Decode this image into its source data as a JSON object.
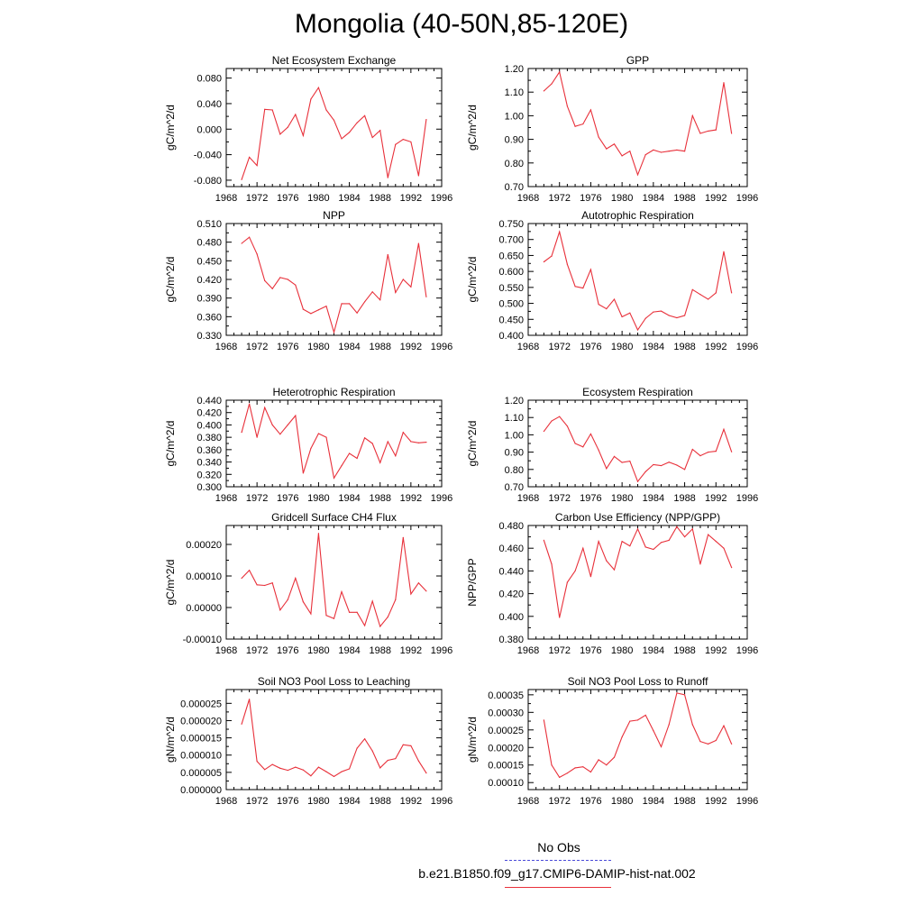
{
  "title": "Mongolia (40-50N,85-120E)",
  "legend": {
    "noobs_label": "No Obs",
    "case_label": "b.e21.B1850.f09_g17.CMIP6-DAMIP-hist-nat.002",
    "noobs_color": "#4a4ad8",
    "case_color": "#e8303a"
  },
  "chart_data": [
    {
      "type": "line",
      "title": "Net Ecosystem Exchange",
      "ylabel": "gC/m^2/d",
      "xlim": [
        1968,
        1996
      ],
      "ylim": [
        -0.09,
        0.095
      ],
      "xticks": [
        1968,
        1972,
        1976,
        1980,
        1984,
        1988,
        1992,
        1996
      ],
      "yticks": [
        "-0.080",
        "-0.040",
        "0.000",
        "0.040",
        "0.080"
      ],
      "yticks_values": [
        -0.08,
        -0.04,
        0.0,
        0.04,
        0.08
      ],
      "x": [
        1970,
        1971,
        1972,
        1973,
        1974,
        1975,
        1976,
        1977,
        1978,
        1979,
        1980,
        1981,
        1982,
        1983,
        1984,
        1985,
        1986,
        1987,
        1988,
        1989,
        1990,
        1991,
        1992,
        1993,
        1994
      ],
      "values": [
        -0.079,
        -0.044,
        -0.057,
        0.031,
        0.03,
        -0.008,
        0.003,
        0.023,
        -0.01,
        0.047,
        0.065,
        0.03,
        0.014,
        -0.015,
        -0.005,
        0.01,
        0.021,
        -0.013,
        -0.002,
        -0.076,
        -0.024,
        -0.016,
        -0.02,
        -0.073,
        0.015
      ]
    },
    {
      "type": "line",
      "title": "GPP",
      "ylabel": "gC/m^2/d",
      "xlim": [
        1968,
        1996
      ],
      "ylim": [
        0.7,
        1.2
      ],
      "xticks": [
        1968,
        1972,
        1976,
        1980,
        1984,
        1988,
        1992,
        1996
      ],
      "yticks": [
        "0.70",
        "0.80",
        "0.90",
        "1.00",
        "1.10",
        "1.20"
      ],
      "yticks_values": [
        0.7,
        0.8,
        0.9,
        1.0,
        1.1,
        1.2
      ],
      "x": [
        1970,
        1971,
        1972,
        1973,
        1974,
        1975,
        1976,
        1977,
        1978,
        1979,
        1980,
        1981,
        1982,
        1983,
        1984,
        1985,
        1986,
        1987,
        1988,
        1989,
        1990,
        1991,
        1992,
        1993,
        1994
      ],
      "values": [
        1.105,
        1.135,
        1.185,
        1.04,
        0.955,
        0.965,
        1.025,
        0.91,
        0.86,
        0.88,
        0.83,
        0.85,
        0.75,
        0.835,
        0.855,
        0.845,
        0.85,
        0.855,
        0.85,
        1.0,
        0.925,
        0.935,
        0.94,
        1.14,
        0.925
      ]
    },
    {
      "type": "line",
      "title": "NPP",
      "ylabel": "gC/m^2/d",
      "xlim": [
        1968,
        1996
      ],
      "ylim": [
        0.33,
        0.51
      ],
      "xticks": [
        1968,
        1972,
        1976,
        1980,
        1984,
        1988,
        1992,
        1996
      ],
      "yticks": [
        "0.330",
        "0.360",
        "0.390",
        "0.420",
        "0.450",
        "0.480",
        "0.510"
      ],
      "yticks_values": [
        0.33,
        0.36,
        0.39,
        0.42,
        0.45,
        0.48,
        0.51
      ],
      "x": [
        1970,
        1971,
        1972,
        1973,
        1974,
        1975,
        1976,
        1977,
        1978,
        1979,
        1980,
        1981,
        1982,
        1983,
        1984,
        1985,
        1986,
        1987,
        1988,
        1989,
        1990,
        1991,
        1992,
        1993,
        1994
      ],
      "values": [
        0.478,
        0.488,
        0.461,
        0.418,
        0.405,
        0.423,
        0.42,
        0.411,
        0.372,
        0.365,
        0.371,
        0.377,
        0.335,
        0.381,
        0.381,
        0.366,
        0.384,
        0.4,
        0.387,
        0.46,
        0.399,
        0.42,
        0.408,
        0.478,
        0.392
      ]
    },
    {
      "type": "line",
      "title": "Autotrophic Respiration",
      "ylabel": "gC/m^2/d",
      "xlim": [
        1968,
        1996
      ],
      "ylim": [
        0.4,
        0.75
      ],
      "xticks": [
        1968,
        1972,
        1976,
        1980,
        1984,
        1988,
        1992,
        1996
      ],
      "yticks": [
        "0.400",
        "0.450",
        "0.500",
        "0.550",
        "0.600",
        "0.650",
        "0.700",
        "0.750"
      ],
      "yticks_values": [
        0.4,
        0.45,
        0.5,
        0.55,
        0.6,
        0.65,
        0.7,
        0.75
      ],
      "x": [
        1970,
        1971,
        1972,
        1973,
        1974,
        1975,
        1976,
        1977,
        1978,
        1979,
        1980,
        1981,
        1982,
        1983,
        1984,
        1985,
        1986,
        1987,
        1988,
        1989,
        1990,
        1991,
        1992,
        1993,
        1994
      ],
      "values": [
        0.63,
        0.648,
        0.724,
        0.622,
        0.553,
        0.548,
        0.606,
        0.497,
        0.483,
        0.513,
        0.458,
        0.47,
        0.417,
        0.453,
        0.473,
        0.476,
        0.462,
        0.455,
        0.462,
        0.543,
        0.528,
        0.513,
        0.533,
        0.662,
        0.533
      ]
    },
    {
      "type": "line",
      "title": "Heterotrophic Respiration",
      "ylabel": "gC/m^2/d",
      "xlim": [
        1968,
        1996
      ],
      "ylim": [
        0.3,
        0.44
      ],
      "xticks": [
        1968,
        1972,
        1976,
        1980,
        1984,
        1988,
        1992,
        1996
      ],
      "yticks": [
        "0.300",
        "0.320",
        "0.340",
        "0.360",
        "0.380",
        "0.400",
        "0.420",
        "0.440"
      ],
      "yticks_values": [
        0.3,
        0.32,
        0.34,
        0.36,
        0.38,
        0.4,
        0.42,
        0.44
      ],
      "x": [
        1970,
        1971,
        1972,
        1973,
        1974,
        1975,
        1976,
        1977,
        1978,
        1979,
        1980,
        1981,
        1982,
        1983,
        1984,
        1985,
        1986,
        1987,
        1988,
        1989,
        1990,
        1991,
        1992,
        1993,
        1994
      ],
      "values": [
        0.388,
        0.434,
        0.38,
        0.428,
        0.4,
        0.385,
        0.4,
        0.415,
        0.322,
        0.362,
        0.386,
        0.38,
        0.314,
        0.334,
        0.354,
        0.346,
        0.379,
        0.37,
        0.339,
        0.373,
        0.35,
        0.388,
        0.373,
        0.371,
        0.372
      ]
    },
    {
      "type": "line",
      "title": "Ecosystem Respiration",
      "ylabel": "gC/m^2/d",
      "xlim": [
        1968,
        1996
      ],
      "ylim": [
        0.7,
        1.2
      ],
      "xticks": [
        1968,
        1972,
        1976,
        1980,
        1984,
        1988,
        1992,
        1996
      ],
      "yticks": [
        "0.70",
        "0.80",
        "0.90",
        "1.00",
        "1.10",
        "1.20"
      ],
      "yticks_values": [
        0.7,
        0.8,
        0.9,
        1.0,
        1.1,
        1.2
      ],
      "x": [
        1970,
        1971,
        1972,
        1973,
        1974,
        1975,
        1976,
        1977,
        1978,
        1979,
        1980,
        1981,
        1982,
        1983,
        1984,
        1985,
        1986,
        1987,
        1988,
        1989,
        1990,
        1991,
        1992,
        1993,
        1994
      ],
      "values": [
        1.02,
        1.08,
        1.105,
        1.05,
        0.95,
        0.93,
        1.005,
        0.912,
        0.805,
        0.875,
        0.84,
        0.848,
        0.73,
        0.787,
        0.828,
        0.822,
        0.842,
        0.825,
        0.8,
        0.916,
        0.879,
        0.9,
        0.905,
        1.032,
        0.902
      ]
    },
    {
      "type": "line",
      "title": "Gridcell Surface CH4 Flux",
      "ylabel": "gC/m^2/d",
      "xlim": [
        1968,
        1996
      ],
      "ylim": [
        -0.0001,
        0.00026
      ],
      "xticks": [
        1968,
        1972,
        1976,
        1980,
        1984,
        1988,
        1992,
        1996
      ],
      "yticks": [
        "-0.00010",
        "0.00000",
        "0.00010",
        "0.00020"
      ],
      "yticks_values": [
        -0.0001,
        0.0,
        0.0001,
        0.0002
      ],
      "x": [
        1970,
        1971,
        1972,
        1973,
        1974,
        1975,
        1976,
        1977,
        1978,
        1979,
        1980,
        1981,
        1982,
        1983,
        1984,
        1985,
        1986,
        1987,
        1988,
        1989,
        1990,
        1991,
        1992,
        1993,
        1994
      ],
      "values": [
        9.3e-05,
        0.000118,
        7.2e-05,
        7e-05,
        7.8e-05,
        -8e-06,
        2.5e-05,
        9.3e-05,
        1.8e-05,
        -2e-05,
        0.000235,
        -2.5e-05,
        -3.5e-05,
        5e-05,
        -1.5e-05,
        -1.5e-05,
        -5.7e-05,
        2e-05,
        -6e-05,
        -3e-05,
        2.5e-05,
        0.000222,
        4.3e-05,
        7.8e-05,
        5.2e-05
      ]
    },
    {
      "type": "line",
      "title": "Carbon Use Efficiency (NPP/GPP)",
      "ylabel": "NPP/GPP",
      "xlim": [
        1968,
        1996
      ],
      "ylim": [
        0.38,
        0.48
      ],
      "xticks": [
        1968,
        1972,
        1976,
        1980,
        1984,
        1988,
        1992,
        1996
      ],
      "yticks": [
        "0.380",
        "0.400",
        "0.420",
        "0.440",
        "0.460",
        "0.480"
      ],
      "yticks_values": [
        0.38,
        0.4,
        0.42,
        0.44,
        0.46,
        0.48
      ],
      "x": [
        1970,
        1971,
        1972,
        1973,
        1974,
        1975,
        1976,
        1977,
        1978,
        1979,
        1980,
        1981,
        1982,
        1983,
        1984,
        1985,
        1986,
        1987,
        1988,
        1989,
        1990,
        1991,
        1992,
        1993,
        1994
      ],
      "values": [
        0.467,
        0.446,
        0.399,
        0.43,
        0.44,
        0.46,
        0.435,
        0.466,
        0.449,
        0.441,
        0.466,
        0.462,
        0.477,
        0.461,
        0.459,
        0.465,
        0.467,
        0.479,
        0.47,
        0.477,
        0.446,
        0.472,
        0.466,
        0.46,
        0.443
      ]
    },
    {
      "type": "line",
      "title": "Soil NO3 Pool Loss to Leaching",
      "ylabel": "gN/m^2/d",
      "xlim": [
        1968,
        1996
      ],
      "ylim": [
        0.0,
        2.9e-05
      ],
      "xticks": [
        1968,
        1972,
        1976,
        1980,
        1984,
        1988,
        1992,
        1996
      ],
      "yticks": [
        "0.000000",
        "0.000005",
        "0.000010",
        "0.000015",
        "0.000020",
        "0.000025"
      ],
      "yticks_values": [
        0.0,
        5e-06,
        1e-05,
        1.5e-05,
        2e-05,
        2.5e-05
      ],
      "x": [
        1970,
        1971,
        1972,
        1973,
        1974,
        1975,
        1976,
        1977,
        1978,
        1979,
        1980,
        1981,
        1982,
        1983,
        1984,
        1985,
        1986,
        1987,
        1988,
        1989,
        1990,
        1991,
        1992,
        1993,
        1994
      ],
      "values": [
        1.9e-05,
        2.62e-05,
        8.2e-06,
        5.8e-06,
        7.3e-06,
        6.2e-06,
        5.6e-06,
        6.5e-06,
        5.7e-06,
        4e-06,
        6.5e-06,
        5.2e-06,
        3.8e-06,
        5.2e-06,
        6e-06,
        1.2e-05,
        1.47e-05,
        1.12e-05,
        6.3e-06,
        8.5e-06,
        9e-06,
        1.3e-05,
        1.27e-05,
        8.3e-06,
        4.8e-06
      ]
    },
    {
      "type": "line",
      "title": "Soil NO3 Pool Loss to Runoff",
      "ylabel": "gN/m^2/d",
      "xlim": [
        1968,
        1996
      ],
      "ylim": [
        8e-05,
        0.000365
      ],
      "xticks": [
        1968,
        1972,
        1976,
        1980,
        1984,
        1988,
        1992,
        1996
      ],
      "yticks": [
        "0.00010",
        "0.00015",
        "0.00020",
        "0.00025",
        "0.00030",
        "0.00035"
      ],
      "yticks_values": [
        0.0001,
        0.00015,
        0.0002,
        0.00025,
        0.0003,
        0.00035
      ],
      "x": [
        1970,
        1971,
        1972,
        1973,
        1974,
        1975,
        1976,
        1977,
        1978,
        1979,
        1980,
        1981,
        1982,
        1983,
        1984,
        1985,
        1986,
        1987,
        1988,
        1989,
        1990,
        1991,
        1992,
        1993,
        1994
      ],
      "values": [
        0.000278,
        0.00015,
        0.000115,
        0.000127,
        0.000142,
        0.000145,
        0.00013,
        0.000165,
        0.00015,
        0.000172,
        0.00023,
        0.000275,
        0.000278,
        0.000292,
        0.000248,
        0.000202,
        0.000265,
        0.000355,
        0.00035,
        0.000265,
        0.000217,
        0.00021,
        0.00022,
        0.000262,
        0.00021
      ]
    }
  ]
}
